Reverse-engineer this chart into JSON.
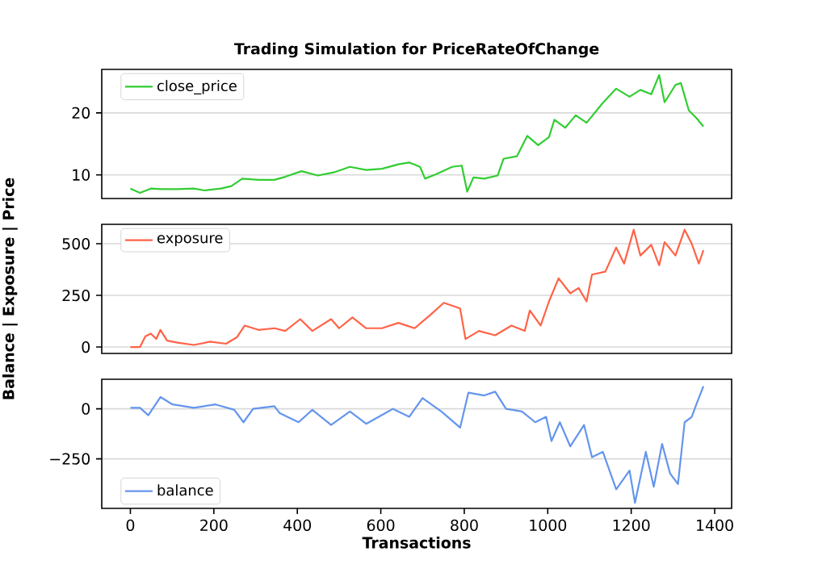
{
  "chart_data": [
    {
      "type": "line",
      "title": "Trading Simulation for PriceRateOfChange",
      "xlim": [
        -68.6,
        1440.6
      ],
      "ylim": [
        6.2,
        27.0
      ],
      "yticks": [
        10,
        20
      ],
      "grid": "y",
      "legend": "top left",
      "tick_labels": "y",
      "x": [
        0,
        23,
        49,
        75,
        113,
        152,
        178,
        217,
        242,
        268,
        307,
        345,
        371,
        410,
        449,
        487,
        526,
        565,
        603,
        642,
        668,
        694,
        706,
        732,
        771,
        794,
        807,
        822,
        848,
        880,
        894,
        926,
        951,
        977,
        1003,
        1016,
        1042,
        1067,
        1093,
        1132,
        1164,
        1196,
        1222,
        1248,
        1267,
        1280,
        1306,
        1319,
        1338,
        1357,
        1373
      ],
      "series": [
        {
          "name": "close_price",
          "color": "#32cd32",
          "values": [
            7.8,
            7.1,
            7.8,
            7.7,
            7.7,
            7.8,
            7.5,
            7.8,
            8.2,
            9.4,
            9.2,
            9.2,
            9.7,
            10.6,
            9.9,
            10.4,
            11.3,
            10.8,
            11.0,
            11.7,
            12.0,
            11.3,
            9.4,
            10.1,
            11.3,
            11.5,
            7.3,
            9.6,
            9.4,
            9.9,
            12.6,
            13.0,
            16.3,
            14.8,
            16.1,
            18.9,
            17.6,
            19.6,
            18.4,
            21.6,
            23.9,
            22.6,
            23.7,
            23.0,
            26.1,
            21.7,
            24.5,
            24.8,
            20.4,
            19.1,
            17.8
          ]
        }
      ]
    },
    {
      "type": "line",
      "ylabel": "Balance | Exposure | Price",
      "xlim": [
        -68.6,
        1440.6
      ],
      "ylim": [
        -31,
        594
      ],
      "yticks": [
        0,
        250,
        500
      ],
      "grid": "y",
      "legend": "top left",
      "tick_labels": "y",
      "x": [
        0,
        23,
        36,
        49,
        62,
        72,
        88,
        113,
        152,
        191,
        229,
        255,
        274,
        307,
        345,
        371,
        407,
        436,
        481,
        500,
        532,
        565,
        603,
        642,
        681,
        719,
        751,
        790,
        803,
        835,
        874,
        913,
        945,
        957,
        983,
        1003,
        1026,
        1054,
        1074,
        1093,
        1106,
        1138,
        1164,
        1183,
        1206,
        1222,
        1248,
        1267,
        1280,
        1306,
        1328,
        1345,
        1362,
        1373
      ],
      "series": [
        {
          "name": "exposure",
          "color": "#ff6347",
          "values": [
            0,
            0,
            52,
            65,
            39,
            83,
            31,
            21,
            10,
            26,
            16,
            47,
            104,
            83,
            91,
            78,
            135,
            78,
            135,
            91,
            143,
            91,
            91,
            117,
            91,
            156,
            214,
            187,
            39,
            78,
            57,
            104,
            78,
            177,
            104,
            221,
            333,
            260,
            286,
            221,
            351,
            365,
            482,
            404,
            568,
            443,
            495,
            396,
            508,
            443,
            568,
            500,
            404,
            469
          ]
        }
      ]
    },
    {
      "type": "line",
      "xlabel": "Transactions",
      "xlim": [
        -68.6,
        1440.6
      ],
      "ylim": [
        -498,
        148
      ],
      "xticks": [
        0,
        200,
        400,
        600,
        800,
        1000,
        1200,
        1400
      ],
      "yticks": [
        {
          "value": -250,
          "label": "−250"
        },
        0
      ],
      "grid": "y",
      "legend": "bottom left",
      "x": [
        0,
        23,
        43,
        72,
        101,
        152,
        204,
        249,
        271,
        294,
        345,
        358,
        403,
        436,
        481,
        526,
        565,
        629,
        668,
        700,
        745,
        790,
        810,
        848,
        874,
        900,
        938,
        970,
        996,
        1009,
        1029,
        1054,
        1087,
        1106,
        1132,
        1164,
        1196,
        1209,
        1235,
        1254,
        1274,
        1293,
        1312,
        1328,
        1345,
        1357,
        1373
      ],
      "series": [
        {
          "name": "balance",
          "color": "#6495ed",
          "values": [
            5,
            5,
            -32,
            59,
            22,
            5,
            22,
            -5,
            -67,
            0,
            13,
            -22,
            -67,
            -5,
            -81,
            -13,
            -75,
            0,
            -40,
            54,
            -13,
            -94,
            81,
            67,
            86,
            0,
            -13,
            -67,
            -40,
            -161,
            -67,
            -188,
            -81,
            -242,
            -215,
            -403,
            -309,
            -470,
            -215,
            -390,
            -175,
            -323,
            -376,
            -67,
            -40,
            27,
            113
          ]
        }
      ]
    }
  ]
}
